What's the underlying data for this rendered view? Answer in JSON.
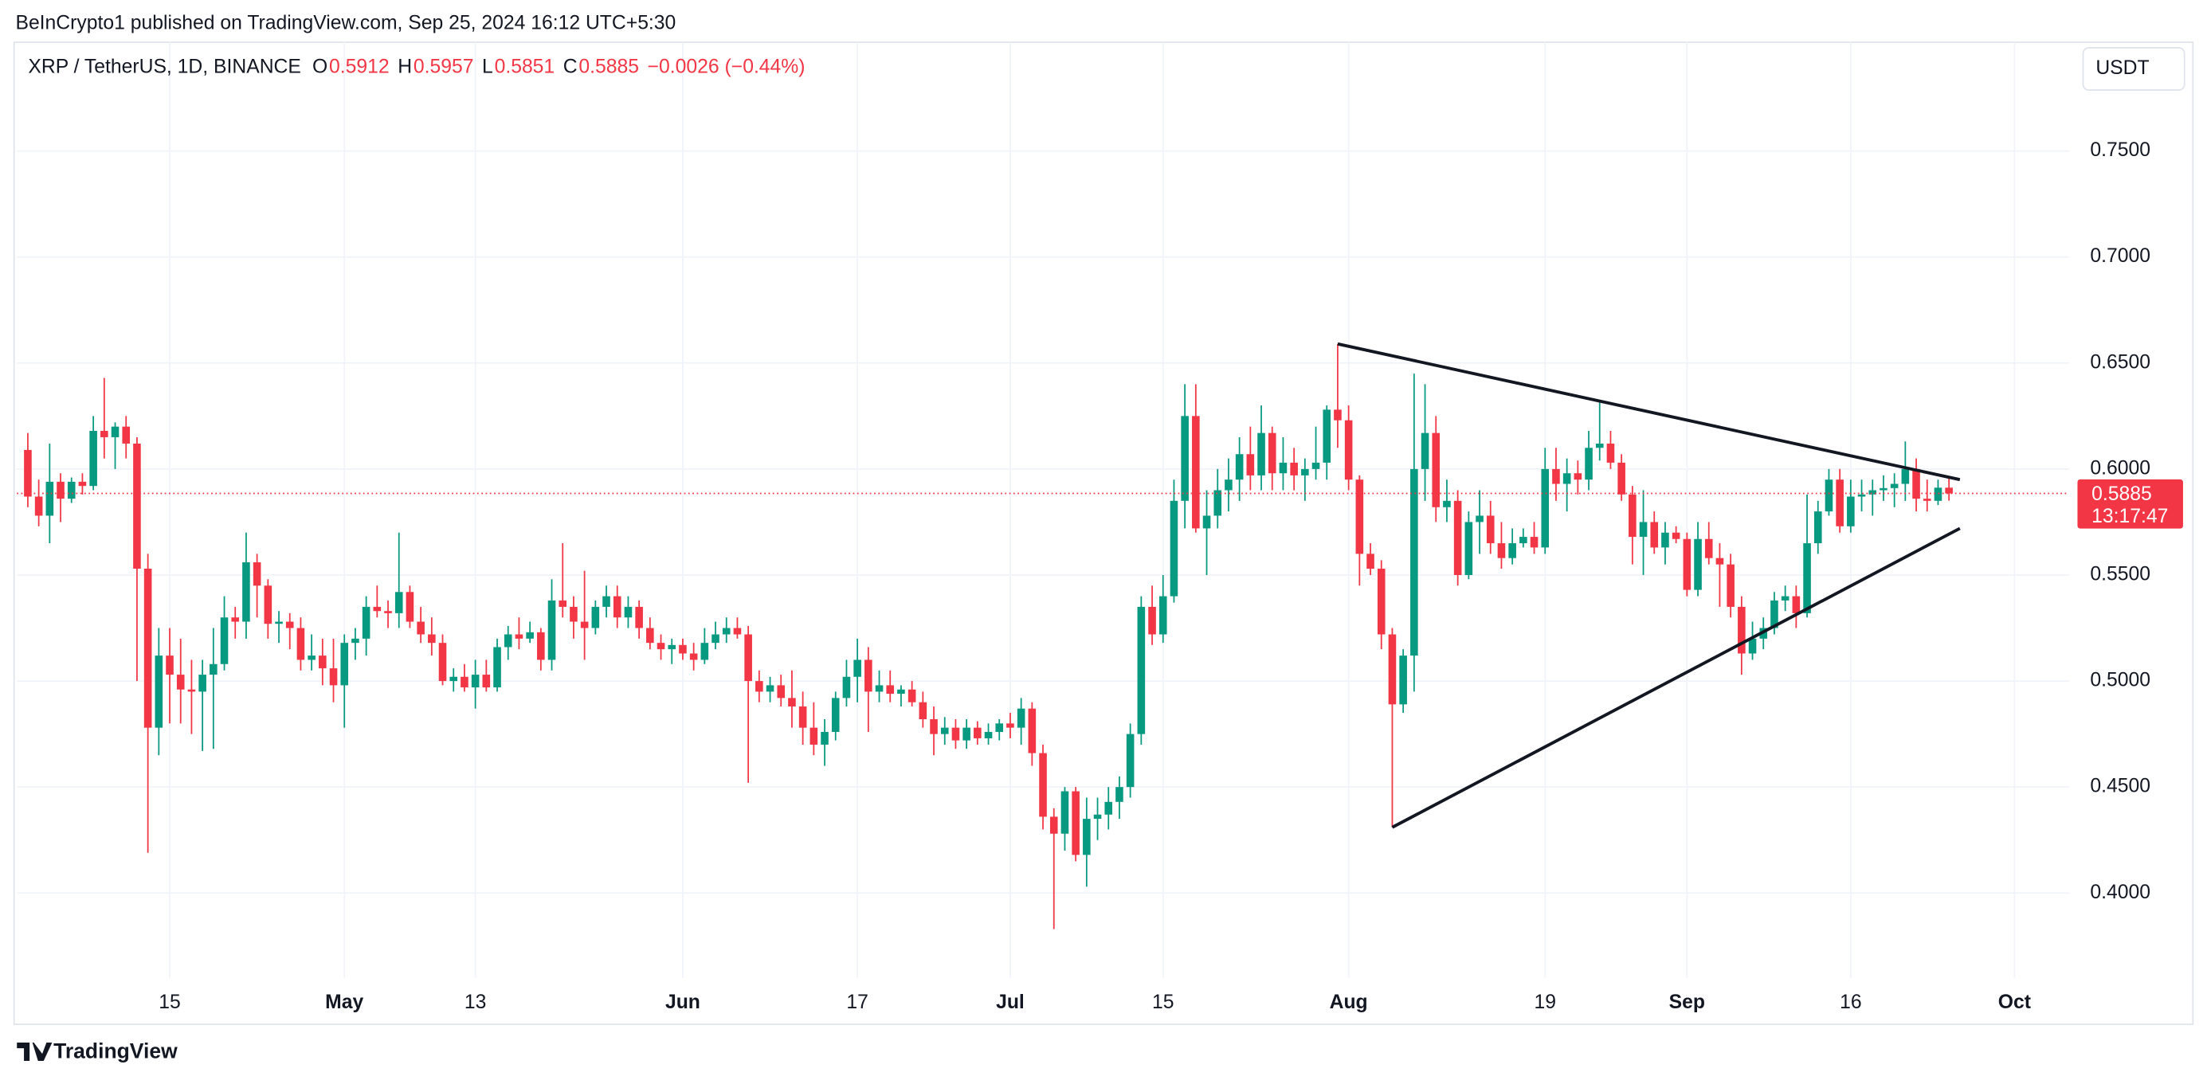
{
  "chart_data": {
    "type": "candlestick",
    "header": "BeInCrypto1 published on TradingView.com, Sep 25, 2024 16:12 UTC+5:30",
    "symbol": "XRP / TetherUS, 1D, BINANCE",
    "ohlc_letters": [
      "O",
      "H",
      "L",
      "C"
    ],
    "change": "−0.0026 (−0.44%)",
    "currency_button": "USDT",
    "countdown": "13:17:47",
    "brand": "TradingView",
    "up_color": "#089981",
    "down_color": "#f23645",
    "grid": true,
    "x": [
      "04-02",
      "04-03",
      "04-04",
      "04-05",
      "04-06",
      "04-07",
      "04-08",
      "04-09",
      "04-10",
      "04-11",
      "04-12",
      "04-13",
      "04-14",
      "04-15",
      "04-16",
      "04-17",
      "04-18",
      "04-19",
      "04-20",
      "04-21",
      "04-22",
      "04-23",
      "04-24",
      "04-25",
      "04-26",
      "04-27",
      "04-28",
      "04-29",
      "04-30",
      "05-01",
      "05-02",
      "05-03",
      "05-04",
      "05-05",
      "05-06",
      "05-07",
      "05-08",
      "05-09",
      "05-10",
      "05-11",
      "05-12",
      "05-13",
      "05-14",
      "05-15",
      "05-16",
      "05-17",
      "05-18",
      "05-19",
      "05-20",
      "05-21",
      "05-22",
      "05-23",
      "05-24",
      "05-25",
      "05-26",
      "05-27",
      "05-28",
      "05-29",
      "05-30",
      "05-31",
      "06-01",
      "06-02",
      "06-03",
      "06-04",
      "06-05",
      "06-06",
      "06-07",
      "06-08",
      "06-09",
      "06-10",
      "06-11",
      "06-12",
      "06-13",
      "06-14",
      "06-15",
      "06-16",
      "06-17",
      "06-18",
      "06-19",
      "06-20",
      "06-21",
      "06-22",
      "06-23",
      "06-24",
      "06-25",
      "06-26",
      "06-27",
      "06-28",
      "06-29",
      "06-30",
      "07-01",
      "07-02",
      "07-03",
      "07-04",
      "07-05",
      "07-06",
      "07-07",
      "07-08",
      "07-09",
      "07-10",
      "07-11",
      "07-12",
      "07-13",
      "07-14",
      "07-15",
      "07-16",
      "07-17",
      "07-18",
      "07-19",
      "07-20",
      "07-21",
      "07-22",
      "07-23",
      "07-24",
      "07-25",
      "07-26",
      "07-27",
      "07-28",
      "07-29",
      "07-30",
      "07-31",
      "08-01",
      "08-02",
      "08-03",
      "08-04",
      "08-05",
      "08-06",
      "08-07",
      "08-08",
      "08-09",
      "08-10",
      "08-11",
      "08-12",
      "08-13",
      "08-14",
      "08-15",
      "08-16",
      "08-17",
      "08-18",
      "08-19",
      "08-20",
      "08-21",
      "08-22",
      "08-23",
      "08-24",
      "08-25",
      "08-26",
      "08-27",
      "08-28",
      "08-29",
      "08-30",
      "08-31",
      "09-01",
      "09-02",
      "09-03",
      "09-04",
      "09-05",
      "09-06",
      "09-07",
      "09-08",
      "09-09",
      "09-10",
      "09-11",
      "09-12",
      "09-13",
      "09-14",
      "09-15",
      "09-16",
      "09-17",
      "09-18",
      "09-19",
      "09-20",
      "09-21",
      "09-22",
      "09-23",
      "09-24",
      "09-25"
    ],
    "open": [
      0.609,
      0.587,
      0.578,
      0.594,
      0.586,
      0.594,
      0.592,
      0.618,
      0.615,
      0.62,
      0.612,
      0.553,
      0.478,
      0.512,
      0.503,
      0.496,
      0.495,
      0.503,
      0.508,
      0.53,
      0.528,
      0.556,
      0.545,
      0.527,
      0.528,
      0.525,
      0.51,
      0.512,
      0.506,
      0.498,
      0.518,
      0.52,
      0.535,
      0.533,
      0.532,
      0.542,
      0.528,
      0.522,
      0.518,
      0.5,
      0.502,
      0.497,
      0.503,
      0.497,
      0.516,
      0.522,
      0.52,
      0.523,
      0.51,
      0.538,
      0.535,
      0.528,
      0.525,
      0.535,
      0.54,
      0.53,
      0.535,
      0.525,
      0.518,
      0.515,
      0.517,
      0.513,
      0.51,
      0.518,
      0.522,
      0.525,
      0.522,
      0.5,
      0.495,
      0.498,
      0.492,
      0.488,
      0.478,
      0.47,
      0.476,
      0.492,
      0.502,
      0.51,
      0.495,
      0.498,
      0.494,
      0.496,
      0.49,
      0.482,
      0.475,
      0.478,
      0.472,
      0.478,
      0.473,
      0.476,
      0.48,
      0.478,
      0.487,
      0.466,
      0.436,
      0.428,
      0.448,
      0.418,
      0.435,
      0.437,
      0.443,
      0.45,
      0.475,
      0.535,
      0.522,
      0.54,
      0.585,
      0.625,
      0.572,
      0.578,
      0.59,
      0.595,
      0.607,
      0.597,
      0.617,
      0.598,
      0.603,
      0.597,
      0.6,
      0.603,
      0.628,
      0.623,
      0.595,
      0.56,
      0.553,
      0.522,
      0.489,
      0.512,
      0.6,
      0.617,
      0.582,
      0.585,
      0.55,
      0.575,
      0.578,
      0.565,
      0.558,
      0.565,
      0.568,
      0.563,
      0.6,
      0.593,
      0.598,
      0.595,
      0.61,
      0.612,
      0.603,
      0.588,
      0.568,
      0.575,
      0.563,
      0.57,
      0.567,
      0.543,
      0.567,
      0.558,
      0.555,
      0.535,
      0.513,
      0.52,
      0.525,
      0.538,
      0.54,
      0.532,
      0.565,
      0.58,
      0.595,
      0.573,
      0.587,
      0.588,
      0.59,
      0.591,
      0.593,
      0.6,
      0.586,
      0.585,
      0.5912
    ],
    "high": [
      0.617,
      0.595,
      0.612,
      0.598,
      0.596,
      0.598,
      0.625,
      0.643,
      0.622,
      0.625,
      0.615,
      0.56,
      0.525,
      0.525,
      0.52,
      0.51,
      0.51,
      0.525,
      0.54,
      0.535,
      0.57,
      0.56,
      0.548,
      0.533,
      0.532,
      0.53,
      0.522,
      0.52,
      0.52,
      0.522,
      0.525,
      0.54,
      0.545,
      0.538,
      0.57,
      0.545,
      0.535,
      0.53,
      0.522,
      0.506,
      0.508,
      0.51,
      0.51,
      0.52,
      0.526,
      0.53,
      0.528,
      0.525,
      0.548,
      0.565,
      0.54,
      0.552,
      0.538,
      0.545,
      0.545,
      0.54,
      0.538,
      0.53,
      0.522,
      0.52,
      0.52,
      0.518,
      0.525,
      0.528,
      0.53,
      0.53,
      0.526,
      0.505,
      0.502,
      0.503,
      0.505,
      0.495,
      0.49,
      0.482,
      0.495,
      0.51,
      0.52,
      0.516,
      0.505,
      0.505,
      0.498,
      0.5,
      0.495,
      0.488,
      0.483,
      0.482,
      0.482,
      0.481,
      0.48,
      0.482,
      0.485,
      0.492,
      0.49,
      0.47,
      0.44,
      0.45,
      0.45,
      0.445,
      0.445,
      0.45,
      0.455,
      0.48,
      0.54,
      0.545,
      0.55,
      0.595,
      0.64,
      0.64,
      0.59,
      0.6,
      0.605,
      0.615,
      0.62,
      0.63,
      0.62,
      0.615,
      0.61,
      0.605,
      0.62,
      0.63,
      0.659,
      0.63,
      0.597,
      0.565,
      0.557,
      0.525,
      0.515,
      0.645,
      0.64,
      0.625,
      0.595,
      0.59,
      0.58,
      0.59,
      0.585,
      0.575,
      0.572,
      0.572,
      0.575,
      0.61,
      0.61,
      0.605,
      0.604,
      0.618,
      0.632,
      0.618,
      0.607,
      0.592,
      0.59,
      0.58,
      0.575,
      0.573,
      0.57,
      0.575,
      0.575,
      0.565,
      0.56,
      0.54,
      0.528,
      0.53,
      0.542,
      0.545,
      0.545,
      0.588,
      0.585,
      0.6,
      0.6,
      0.595,
      0.595,
      0.595,
      0.597,
      0.598,
      0.613,
      0.605,
      0.595,
      0.595,
      0.5957
    ],
    "low": [
      0.582,
      0.573,
      0.565,
      0.575,
      0.584,
      0.588,
      0.59,
      0.605,
      0.6,
      0.605,
      0.5,
      0.419,
      0.465,
      0.48,
      0.48,
      0.475,
      0.467,
      0.468,
      0.505,
      0.52,
      0.52,
      0.53,
      0.52,
      0.518,
      0.515,
      0.505,
      0.505,
      0.498,
      0.49,
      0.478,
      0.51,
      0.512,
      0.53,
      0.525,
      0.525,
      0.525,
      0.518,
      0.512,
      0.498,
      0.495,
      0.495,
      0.487,
      0.495,
      0.495,
      0.51,
      0.515,
      0.518,
      0.505,
      0.505,
      0.53,
      0.52,
      0.51,
      0.522,
      0.53,
      0.525,
      0.525,
      0.52,
      0.515,
      0.51,
      0.508,
      0.51,
      0.505,
      0.508,
      0.515,
      0.518,
      0.52,
      0.452,
      0.49,
      0.49,
      0.488,
      0.478,
      0.47,
      0.465,
      0.46,
      0.472,
      0.488,
      0.49,
      0.476,
      0.49,
      0.49,
      0.488,
      0.488,
      0.478,
      0.465,
      0.47,
      0.468,
      0.468,
      0.47,
      0.47,
      0.472,
      0.473,
      0.47,
      0.46,
      0.43,
      0.383,
      0.42,
      0.415,
      0.403,
      0.425,
      0.43,
      0.435,
      0.445,
      0.47,
      0.517,
      0.518,
      0.537,
      0.572,
      0.57,
      0.55,
      0.572,
      0.58,
      0.585,
      0.59,
      0.59,
      0.59,
      0.59,
      0.59,
      0.585,
      0.595,
      0.595,
      0.61,
      0.59,
      0.545,
      0.55,
      0.515,
      0.431,
      0.485,
      0.495,
      0.585,
      0.575,
      0.575,
      0.545,
      0.548,
      0.56,
      0.56,
      0.553,
      0.555,
      0.563,
      0.56,
      0.56,
      0.585,
      0.58,
      0.588,
      0.59,
      0.604,
      0.6,
      0.585,
      0.555,
      0.55,
      0.56,
      0.555,
      0.565,
      0.54,
      0.54,
      0.555,
      0.535,
      0.53,
      0.503,
      0.51,
      0.515,
      0.522,
      0.533,
      0.525,
      0.53,
      0.56,
      0.578,
      0.57,
      0.57,
      0.58,
      0.578,
      0.585,
      0.582,
      0.585,
      0.58,
      0.58,
      0.583,
      0.5851
    ],
    "close": [
      0.587,
      0.578,
      0.594,
      0.586,
      0.594,
      0.592,
      0.618,
      0.615,
      0.62,
      0.612,
      0.553,
      0.478,
      0.512,
      0.503,
      0.496,
      0.495,
      0.503,
      0.508,
      0.53,
      0.528,
      0.556,
      0.545,
      0.527,
      0.528,
      0.525,
      0.51,
      0.512,
      0.506,
      0.498,
      0.518,
      0.52,
      0.535,
      0.533,
      0.532,
      0.542,
      0.528,
      0.522,
      0.518,
      0.5,
      0.502,
      0.497,
      0.503,
      0.497,
      0.516,
      0.522,
      0.52,
      0.523,
      0.51,
      0.538,
      0.535,
      0.528,
      0.525,
      0.535,
      0.54,
      0.53,
      0.535,
      0.525,
      0.518,
      0.515,
      0.517,
      0.513,
      0.51,
      0.518,
      0.522,
      0.525,
      0.522,
      0.5,
      0.495,
      0.498,
      0.492,
      0.488,
      0.478,
      0.47,
      0.476,
      0.492,
      0.502,
      0.51,
      0.495,
      0.498,
      0.494,
      0.496,
      0.49,
      0.482,
      0.475,
      0.478,
      0.472,
      0.478,
      0.473,
      0.476,
      0.48,
      0.478,
      0.487,
      0.466,
      0.436,
      0.428,
      0.448,
      0.418,
      0.435,
      0.437,
      0.443,
      0.45,
      0.475,
      0.535,
      0.522,
      0.54,
      0.585,
      0.625,
      0.572,
      0.578,
      0.59,
      0.595,
      0.607,
      0.597,
      0.617,
      0.598,
      0.603,
      0.597,
      0.6,
      0.603,
      0.628,
      0.623,
      0.595,
      0.56,
      0.553,
      0.522,
      0.489,
      0.512,
      0.6,
      0.617,
      0.582,
      0.585,
      0.55,
      0.575,
      0.578,
      0.565,
      0.558,
      0.565,
      0.568,
      0.563,
      0.6,
      0.593,
      0.598,
      0.595,
      0.61,
      0.612,
      0.603,
      0.588,
      0.568,
      0.575,
      0.563,
      0.57,
      0.567,
      0.543,
      0.567,
      0.558,
      0.555,
      0.535,
      0.513,
      0.52,
      0.525,
      0.538,
      0.54,
      0.532,
      0.565,
      0.58,
      0.595,
      0.573,
      0.587,
      0.588,
      0.59,
      0.591,
      0.593,
      0.6,
      0.586,
      0.585,
      0.5912,
      0.5885
    ],
    "xlim": [
      "04-01",
      "10-06"
    ],
    "xticks": [
      {
        "value": "04-15",
        "label": "15"
      },
      {
        "value": "05-01",
        "label": "May"
      },
      {
        "value": "05-13",
        "label": "13"
      },
      {
        "value": "06-01",
        "label": "Jun"
      },
      {
        "value": "06-17",
        "label": "17"
      },
      {
        "value": "07-01",
        "label": "Jul"
      },
      {
        "value": "07-15",
        "label": "15"
      },
      {
        "value": "08-01",
        "label": "Aug"
      },
      {
        "value": "08-19",
        "label": "19"
      },
      {
        "value": "09-01",
        "label": "Sep"
      },
      {
        "value": "09-16",
        "label": "16"
      },
      {
        "value": "10-01",
        "label": "Oct"
      }
    ],
    "ylim": [
      0.36,
      0.798
    ],
    "yticks": [
      {
        "value": 0.4,
        "label": "0.4000"
      },
      {
        "value": 0.45,
        "label": "0.4500"
      },
      {
        "value": 0.5,
        "label": "0.5000"
      },
      {
        "value": 0.55,
        "label": "0.5500"
      },
      {
        "value": 0.6,
        "label": "0.6000"
      },
      {
        "value": 0.65,
        "label": "0.6500"
      },
      {
        "value": 0.7,
        "label": "0.7000"
      },
      {
        "value": 0.75,
        "label": "0.7500"
      }
    ],
    "trendlines": [
      {
        "x": [
          "07-31",
          "09-26"
        ],
        "y": [
          0.659,
          0.595
        ]
      },
      {
        "x": [
          "08-05",
          "09-26"
        ],
        "y": [
          0.431,
          0.572
        ]
      }
    ]
  }
}
